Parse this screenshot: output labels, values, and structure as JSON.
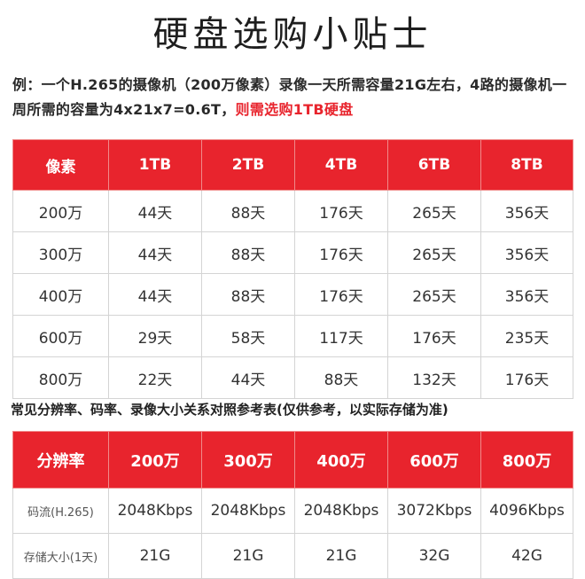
{
  "title": "硬盘选购小贴士",
  "intro": {
    "text": "例：一个H.265的摄像机（200万像素）录像一天所需容量21G左右，4路的摄像机一周所需的容量为4x21x7=0.6T，",
    "highlight": "则需选购1TB硬盘",
    "highlight_color": "#e8242d"
  },
  "table1": {
    "headers": [
      "像素",
      "1TB",
      "2TB",
      "4TB",
      "6TB",
      "8TB"
    ],
    "rows": [
      [
        "200万",
        "44天",
        "88天",
        "176天",
        "265天",
        "356天"
      ],
      [
        "300万",
        "44天",
        "88天",
        "176天",
        "265天",
        "356天"
      ],
      [
        "400万",
        "44天",
        "88天",
        "176天",
        "265天",
        "356天"
      ],
      [
        "600万",
        "29天",
        "58天",
        "117天",
        "176天",
        "235天"
      ],
      [
        "800万",
        "22天",
        "44天",
        "88天",
        "132天",
        "176天"
      ]
    ]
  },
  "subtitle": "常见分辨率、码率、录像大小关系对照参考表(仅供参考，以实际存储为准)",
  "table2": {
    "headers": [
      "分辨率",
      "200万",
      "300万",
      "400万",
      "600万",
      "800万"
    ],
    "rows": [
      [
        "码流(H.265)",
        "2048Kbps",
        "2048Kbps",
        "2048Kbps",
        "3072Kbps",
        "4096Kbps"
      ],
      [
        "存储大小(1天)",
        "21G",
        "21G",
        "21G",
        "32G",
        "42G"
      ]
    ]
  },
  "header_color": "#e8242d"
}
